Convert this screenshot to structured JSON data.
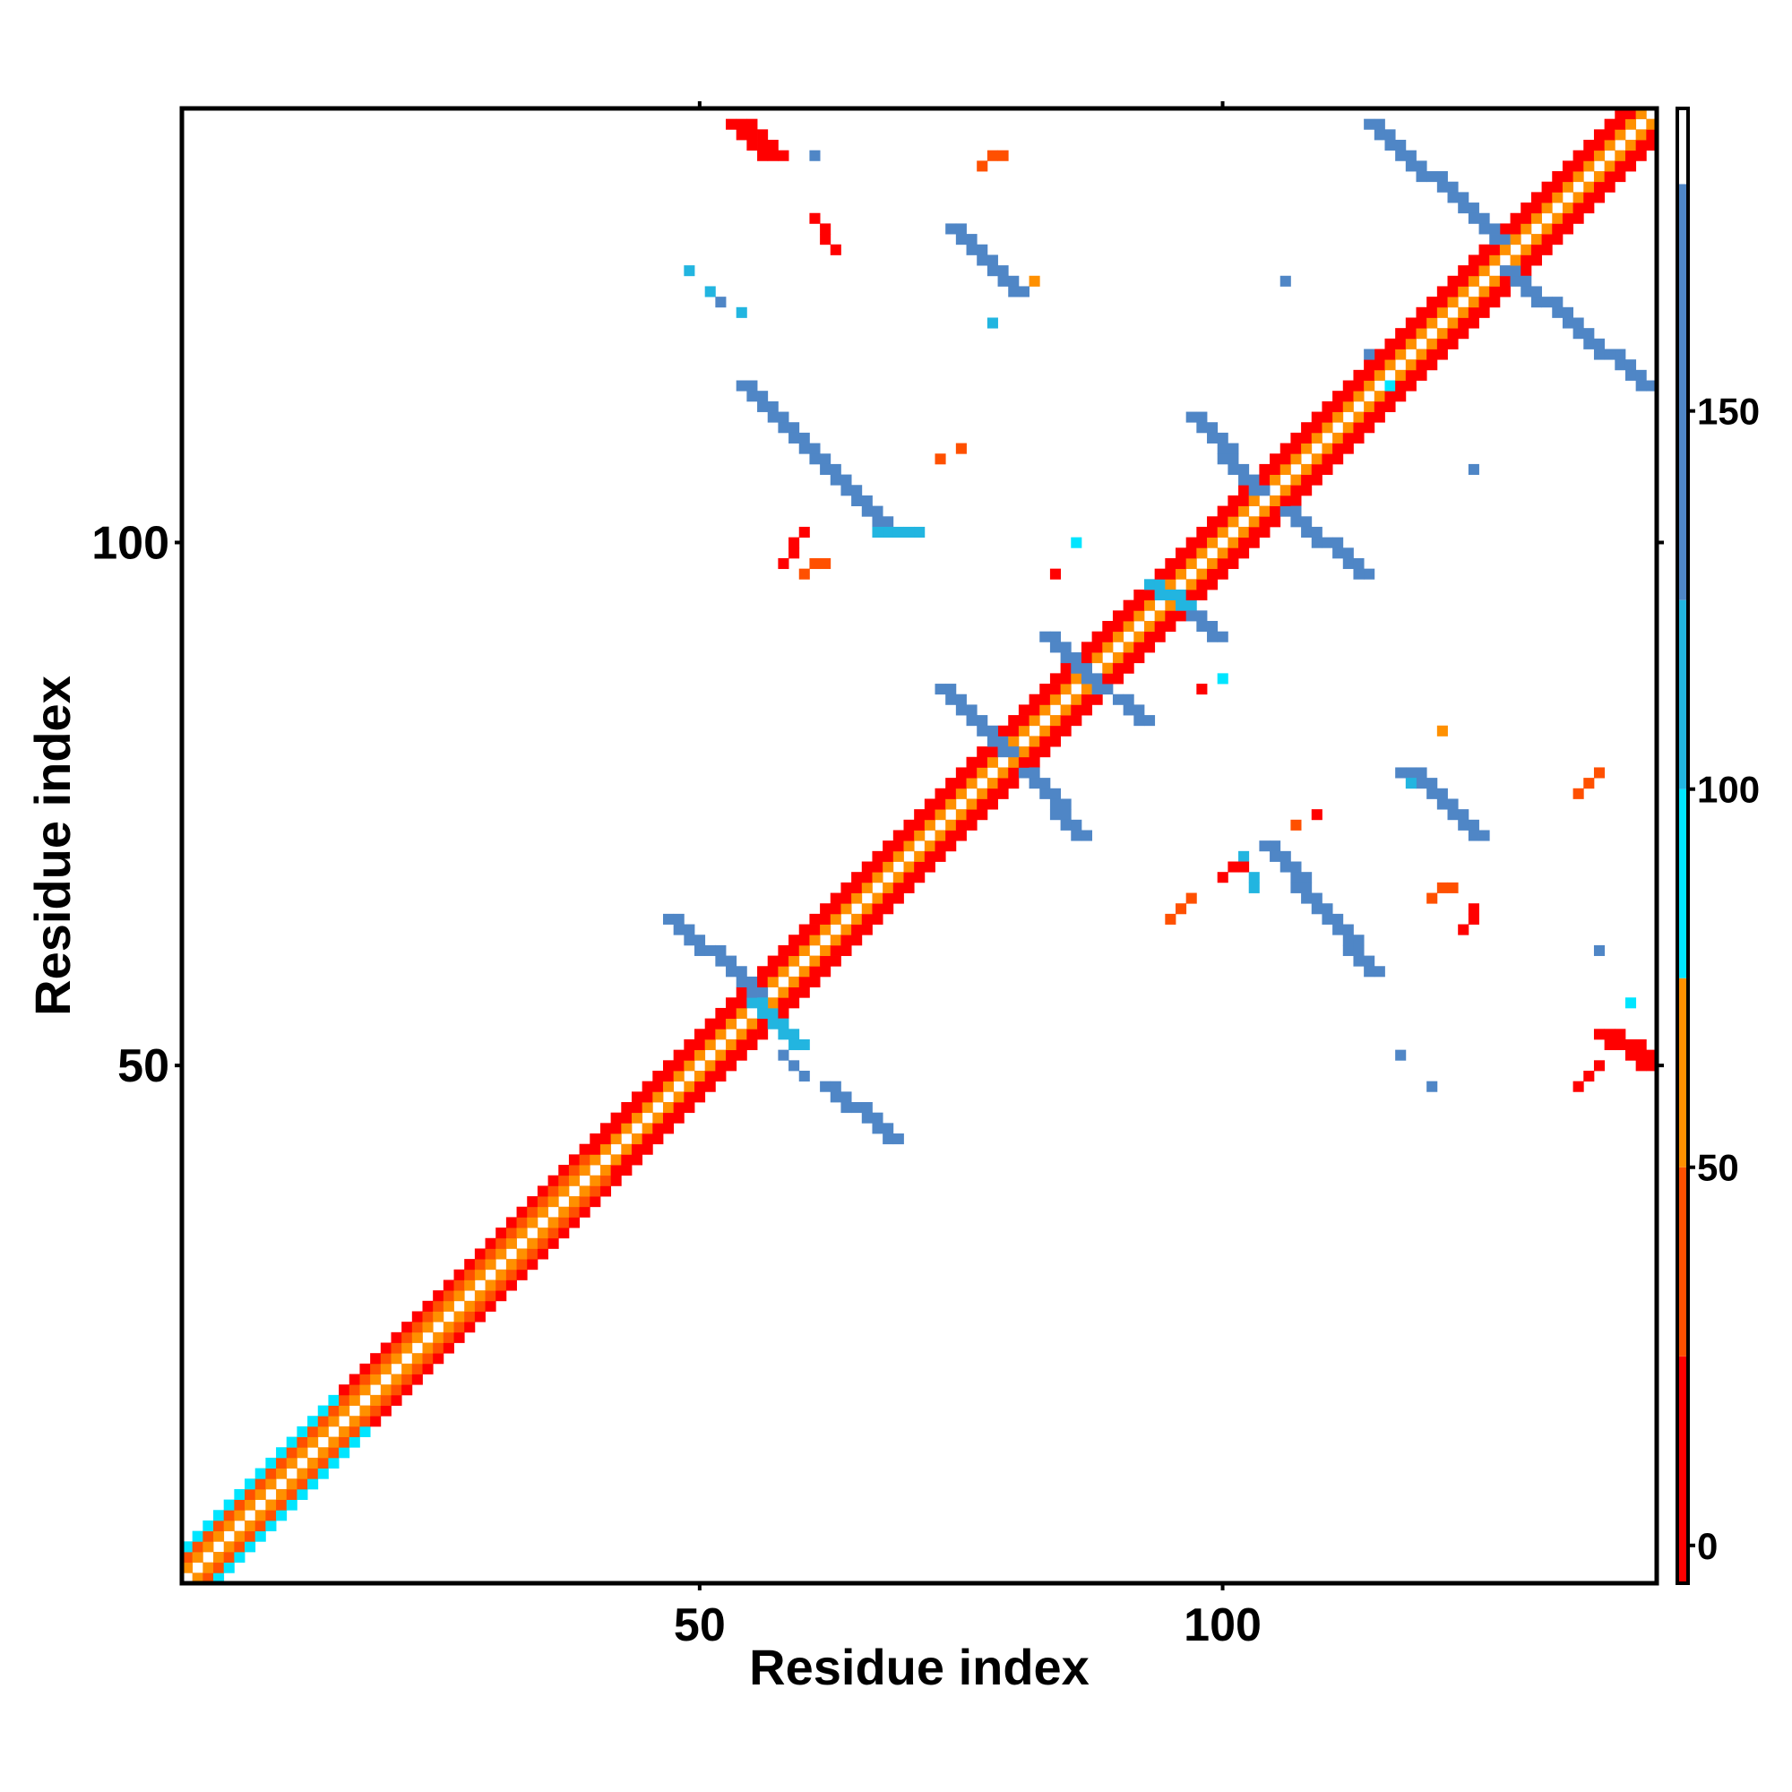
{
  "chart_data": {
    "type": "heatmap",
    "title": "",
    "xlabel": "Residue index",
    "ylabel": "Residue index",
    "n_residues": 141,
    "xlim": [
      1,
      141
    ],
    "ylim": [
      1,
      141
    ],
    "x_ticks": [
      50,
      100
    ],
    "y_ticks": [
      50,
      100
    ],
    "x_tick_labels": [
      "50",
      "100"
    ],
    "y_tick_labels": [
      "50",
      "100"
    ],
    "grid": false,
    "colorbar": {
      "range": [
        -5,
        190
      ],
      "ticks": [
        0,
        50,
        100,
        150
      ],
      "tick_labels": [
        "0",
        "50",
        "100",
        "150"
      ],
      "placement": "right",
      "bins": [
        {
          "from": -5,
          "to": 25,
          "color": "#ff0000"
        },
        {
          "from": 25,
          "to": 50,
          "color": "#ff5000"
        },
        {
          "from": 50,
          "to": 75,
          "color": "#ff9000"
        },
        {
          "from": 75,
          "to": 100,
          "color": "#00e5ff"
        },
        {
          "from": 100,
          "to": 125,
          "color": "#22b5e0"
        },
        {
          "from": 125,
          "to": 180,
          "color": "#4f86c6"
        },
        {
          "from": 180,
          "to": 190,
          "color": "#ffffff"
        }
      ]
    },
    "diagonal_band": {
      "start": 1,
      "end": 141,
      "value_near": 30,
      "value_far": 5,
      "segments": [
        {
          "from": 1,
          "to": 16,
          "value_i_plus_1": 60,
          "value_i_plus_2": 40,
          "value_i_plus_3": 90
        },
        {
          "from": 16,
          "to": 40,
          "value_i_plus_1": 60,
          "value_i_plus_2": 40,
          "value_i_plus_3": 10
        },
        {
          "from": 40,
          "to": 58,
          "value_i_plus_1": 60,
          "value_i_plus_2": 10,
          "value_i_plus_3": 20
        },
        {
          "from": 58,
          "to": 78,
          "value_i_plus_1": 60,
          "value_i_plus_2": 5,
          "value_i_plus_3": 5
        },
        {
          "from": 78,
          "to": 110,
          "value_i_plus_1": 60,
          "value_i_plus_2": 10,
          "value_i_plus_3": 5
        },
        {
          "from": 110,
          "to": 141,
          "value_i_plus_1": 60,
          "value_i_plus_2": 5,
          "value_i_plus_3": 5
        }
      ]
    },
    "clusters": [
      {
        "type": "line",
        "from": [
          47,
          64
        ],
        "to": [
          55,
          57
        ],
        "width": 2,
        "value": 140
      },
      {
        "type": "line",
        "from": [
          55,
          56
        ],
        "to": [
          59,
          52
        ],
        "width": 2,
        "value": 120
      },
      {
        "type": "line",
        "from": [
          58,
          51
        ],
        "to": [
          60,
          49
        ],
        "width": 1,
        "value": 140
      },
      {
        "type": "line",
        "from": [
          62,
          48
        ],
        "to": [
          68,
          43
        ],
        "width": 2,
        "value": 150
      },
      {
        "type": "line",
        "from": [
          73,
          86
        ],
        "to": [
          79,
          80
        ],
        "width": 2,
        "value": 150
      },
      {
        "type": "line",
        "from": [
          81,
          78
        ],
        "to": [
          86,
          72
        ],
        "width": 2,
        "value": 150
      },
      {
        "type": "line",
        "from": [
          83,
          91
        ],
        "to": [
          88,
          86
        ],
        "width": 2,
        "value": 130
      },
      {
        "type": "line",
        "from": [
          90,
          85
        ],
        "to": [
          92,
          83
        ],
        "width": 2,
        "value": 130
      },
      {
        "type": "line",
        "from": [
          93,
          96
        ],
        "to": [
          96,
          94
        ],
        "width": 2,
        "value": 120
      },
      {
        "type": "line",
        "from": [
          97,
          93
        ],
        "to": [
          99,
          91
        ],
        "width": 2,
        "value": 130
      },
      {
        "type": "line",
        "from": [
          97,
          112
        ],
        "to": [
          103,
          105
        ],
        "width": 2,
        "value": 150
      },
      {
        "type": "line",
        "from": [
          106,
          103
        ],
        "to": [
          113,
          97
        ],
        "width": 2,
        "value": 150
      },
      {
        "type": "line",
        "from": [
          114,
          140
        ],
        "to": [
          126,
          129
        ],
        "width": 2,
        "value": 155
      },
      {
        "type": "line",
        "from": [
          127,
          126
        ],
        "to": [
          140,
          115
        ],
        "width": 2,
        "value": 155
      },
      {
        "type": "line",
        "from": [
          54,
          115
        ],
        "to": [
          68,
          101
        ],
        "width": 2,
        "value": 155
      },
      {
        "type": "line",
        "from": [
          67,
          101
        ],
        "to": [
          71,
          101
        ],
        "width": 1,
        "value": 110
      },
      {
        "type": "line",
        "from": [
          74,
          130
        ],
        "to": [
          80,
          124
        ],
        "width": 2,
        "value": 155
      },
      {
        "type": "line",
        "from": [
          104,
          71
        ],
        "to": [
          114,
          59
        ],
        "width": 2,
        "value": 155
      },
      {
        "type": "line",
        "from": [
          102,
          70
        ],
        "to": [
          103,
          67
        ],
        "width": 1,
        "value": 100
      },
      {
        "type": "line",
        "from": [
          118,
          78
        ],
        "to": [
          124,
          72
        ],
        "width": 2,
        "value": 155
      },
      {
        "type": "line",
        "from": [
          53,
          140
        ],
        "to": [
          56,
          137
        ],
        "width": 3,
        "value": 15
      },
      {
        "type": "line",
        "from": [
          136,
          53
        ],
        "to": [
          140,
          50
        ],
        "width": 3,
        "value": 15
      },
      {
        "type": "line",
        "from": [
          61,
          131
        ],
        "to": [
          63,
          128
        ],
        "width": 1,
        "value": 20
      },
      {
        "type": "line",
        "from": [
          60,
          101
        ],
        "to": [
          58,
          98
        ],
        "width": 1,
        "value": 20
      },
      {
        "type": "line",
        "from": [
          97,
          66
        ],
        "to": [
          95,
          64
        ],
        "width": 1,
        "value": 35
      },
      {
        "type": "line",
        "from": [
          100,
          68
        ],
        "to": [
          102,
          69
        ],
        "width": 1,
        "value": 15
      },
      {
        "type": "line",
        "from": [
          124,
          65
        ],
        "to": [
          123,
          63
        ],
        "width": 1,
        "value": 20
      },
      {
        "type": "line",
        "from": [
          120,
          66
        ],
        "to": [
          122,
          67
        ],
        "width": 1,
        "value": 30
      },
      {
        "type": "line",
        "from": [
          134,
          76
        ],
        "to": [
          136,
          78
        ],
        "width": 1,
        "value": 40
      },
      {
        "type": "line",
        "from": [
          77,
          136
        ],
        "to": [
          79,
          137
        ],
        "width": 1,
        "value": 40
      },
      {
        "type": "line",
        "from": [
          60,
          97
        ],
        "to": [
          62,
          98
        ],
        "width": 1,
        "value": 45
      },
      {
        "type": "line",
        "from": [
          134,
          48
        ],
        "to": [
          136,
          50
        ],
        "width": 1,
        "value": 20
      },
      {
        "type": "point",
        "x": 49,
        "y": 126,
        "value": 110
      },
      {
        "type": "point",
        "x": 51,
        "y": 124,
        "value": 110
      },
      {
        "type": "point",
        "x": 52,
        "y": 123,
        "value": 130
      },
      {
        "type": "point",
        "x": 54,
        "y": 122,
        "value": 120
      },
      {
        "type": "point",
        "x": 61,
        "y": 137,
        "value": 150
      },
      {
        "type": "point",
        "x": 78,
        "y": 121,
        "value": 120
      },
      {
        "type": "point",
        "x": 82,
        "y": 125,
        "value": 50
      },
      {
        "type": "point",
        "x": 75,
        "y": 109,
        "value": 40
      },
      {
        "type": "point",
        "x": 73,
        "y": 108,
        "value": 35
      },
      {
        "type": "point",
        "x": 84,
        "y": 97,
        "value": 20
      },
      {
        "type": "point",
        "x": 86,
        "y": 100,
        "value": 90
      },
      {
        "type": "point",
        "x": 98,
        "y": 86,
        "value": 20
      },
      {
        "type": "point",
        "x": 100,
        "y": 87,
        "value": 90
      },
      {
        "type": "point",
        "x": 106,
        "y": 125,
        "value": 150
      },
      {
        "type": "point",
        "x": 114,
        "y": 118,
        "value": 140
      },
      {
        "type": "point",
        "x": 116,
        "y": 115,
        "value": 90
      },
      {
        "type": "point",
        "x": 124,
        "y": 107,
        "value": 140
      },
      {
        "type": "point",
        "x": 121,
        "y": 82,
        "value": 50
      },
      {
        "type": "point",
        "x": 118,
        "y": 77,
        "value": 100
      },
      {
        "type": "point",
        "x": 117,
        "y": 78,
        "value": 150
      },
      {
        "type": "point",
        "x": 109,
        "y": 74,
        "value": 20
      },
      {
        "type": "point",
        "x": 107,
        "y": 73,
        "value": 30
      },
      {
        "type": "point",
        "x": 136,
        "y": 61,
        "value": 150
      },
      {
        "type": "point",
        "x": 120,
        "y": 48,
        "value": 140
      },
      {
        "type": "point",
        "x": 117,
        "y": 51,
        "value": 140
      },
      {
        "type": "point",
        "x": 139,
        "y": 56,
        "value": 90
      }
    ]
  }
}
